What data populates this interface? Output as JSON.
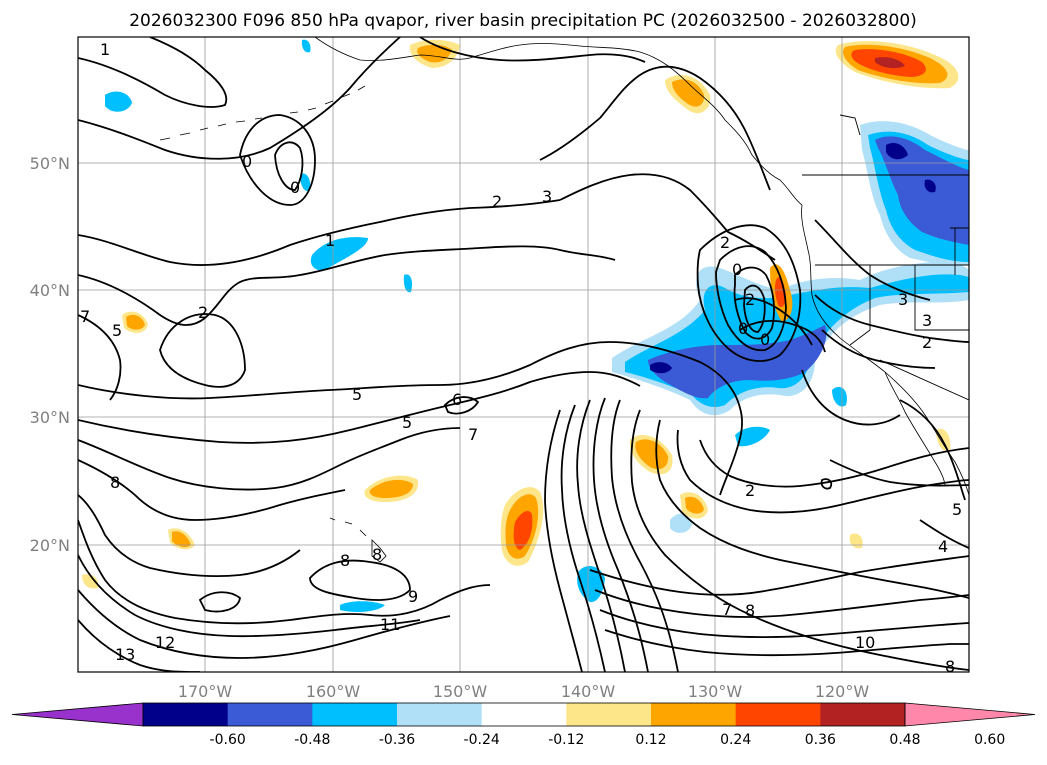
{
  "title": "2026032300 F096 850 hPa qvapor, river basin precipitation PC (2026032500 - 2026032800)",
  "lon_ticks": [
    "170°W",
    "160°W",
    "150°W",
    "140°W",
    "130°W",
    "120°W"
  ],
  "lat_ticks": [
    "50°N",
    "40°N",
    "30°N",
    "20°N"
  ],
  "colorbar": {
    "colors": [
      "#9932cc",
      "#00008b",
      "#3b5bd6",
      "#00bfff",
      "#b0e0f8",
      "#ffffff",
      "#fde68a",
      "#ffa500",
      "#ff4500",
      "#b22222",
      "#ff88aa"
    ],
    "ticks": [
      "-0.60",
      "-0.48",
      "-0.36",
      "-0.24",
      "-0.12",
      "0.12",
      "0.24",
      "0.36",
      "0.48",
      "0.60"
    ]
  },
  "contour_labels": [
    {
      "t": "1"
    },
    {
      "t": "0"
    },
    {
      "t": "0"
    },
    {
      "t": "1"
    },
    {
      "t": "2"
    },
    {
      "t": "3"
    },
    {
      "t": "2"
    },
    {
      "t": "0"
    },
    {
      "t": "2"
    },
    {
      "t": "0"
    },
    {
      "t": "0"
    },
    {
      "t": "3"
    },
    {
      "t": "3"
    },
    {
      "t": "2"
    },
    {
      "t": "5"
    },
    {
      "t": "5"
    },
    {
      "t": "6"
    },
    {
      "t": "7"
    },
    {
      "t": "8"
    },
    {
      "t": "8"
    },
    {
      "t": "9"
    },
    {
      "t": "11"
    },
    {
      "t": "12"
    },
    {
      "t": "13"
    },
    {
      "t": "2"
    },
    {
      "t": "7"
    },
    {
      "t": "8"
    },
    {
      "t": "10"
    },
    {
      "t": "4"
    },
    {
      "t": "5"
    },
    {
      "t": "8"
    },
    {
      "t": "8"
    },
    {
      "t": "7"
    },
    {
      "t": "5"
    },
    {
      "t": "2"
    }
  ]
}
